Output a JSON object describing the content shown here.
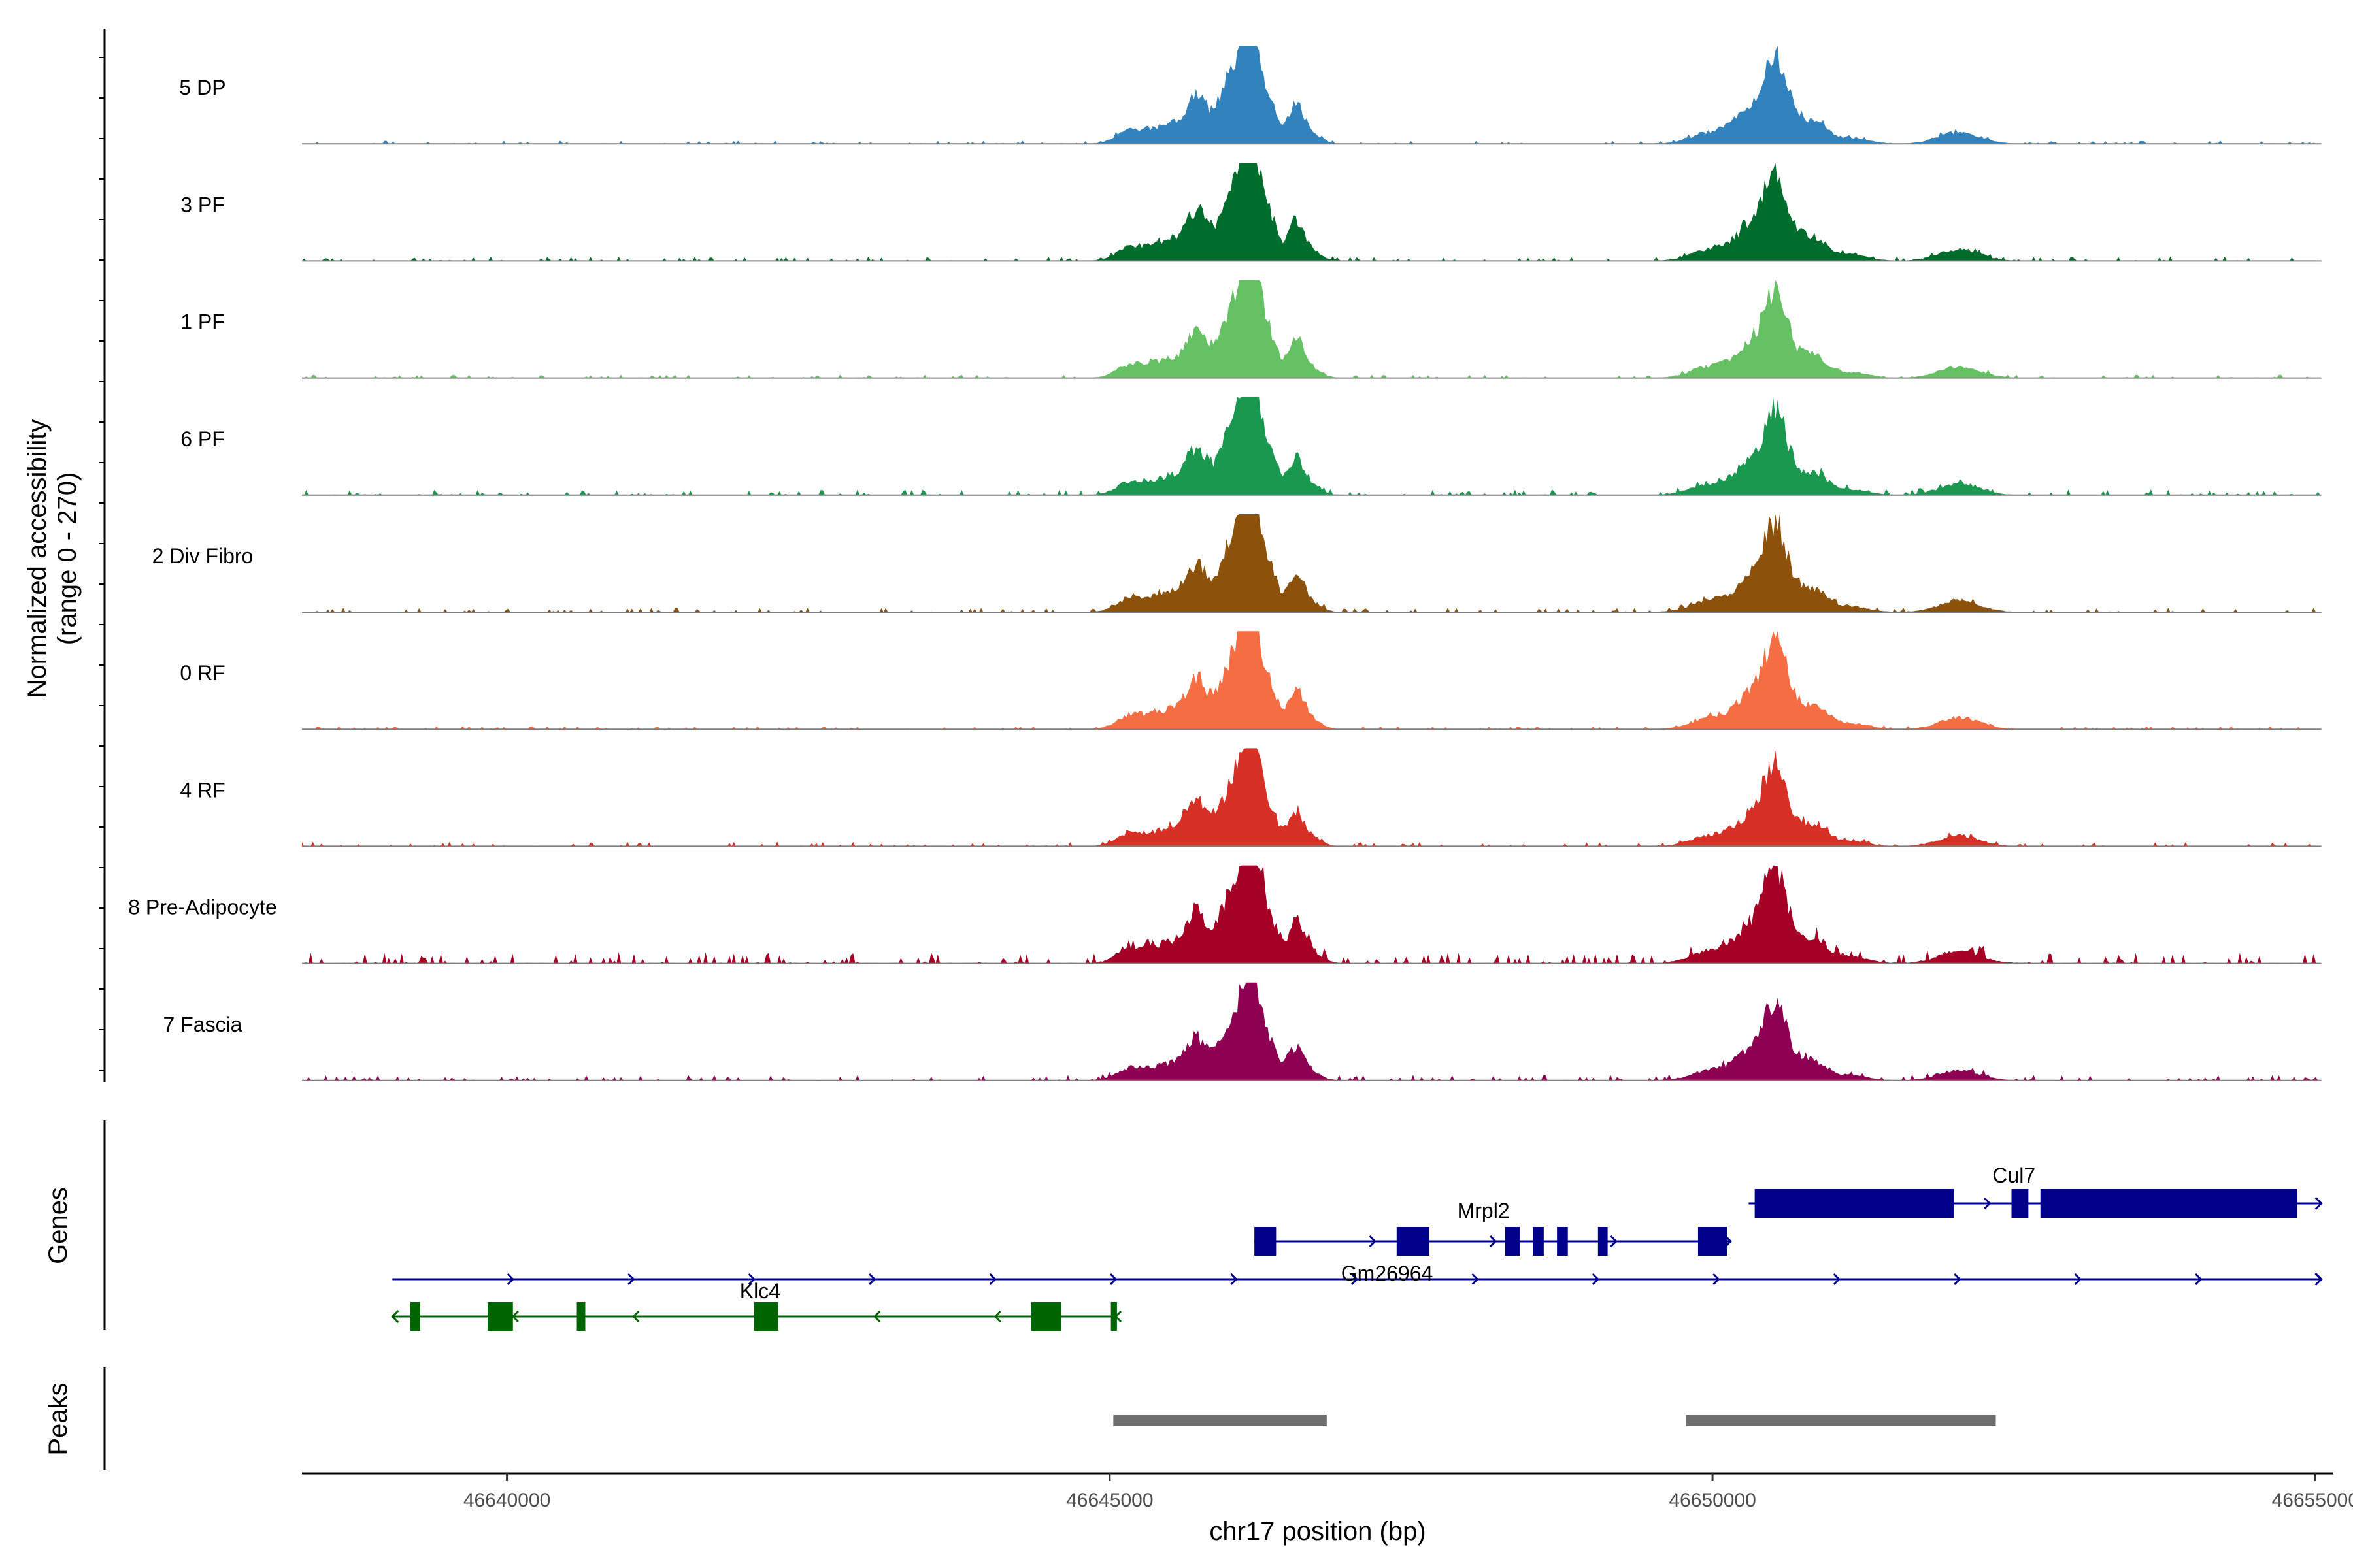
{
  "chart_data": {
    "type": "area",
    "title": "",
    "xlabel": "chr17 position (bp)",
    "ylabel_line1": "Normalized accessibility",
    "ylabel_line2": "(range 0 - 270)",
    "genes_panel_label": "Genes",
    "peaks_panel_label": "Peaks",
    "xlim": [
      46638300,
      46655150
    ],
    "ylim": [
      0,
      270
    ],
    "x_ticks": [
      46640000,
      46645000,
      46650000,
      46655000
    ],
    "x_tick_labels": [
      "46640000",
      "46645000",
      "46650000",
      "46655000"
    ],
    "track_x_range": [
      46638300,
      46655050
    ],
    "peak_shapes": [
      {
        "center": 46645180,
        "width": 120,
        "height": 0.14
      },
      {
        "center": 46645400,
        "width": 110,
        "height": 0.1
      },
      {
        "center": 46645520,
        "width": 90,
        "height": 0.12
      },
      {
        "center": 46645720,
        "width": 90,
        "height": 0.5
      },
      {
        "center": 46645950,
        "width": 80,
        "height": 0.32
      },
      {
        "center": 46646100,
        "width": 100,
        "height": 0.72
      },
      {
        "center": 46646180,
        "width": 70,
        "height": 0.85
      },
      {
        "center": 46646330,
        "width": 70,
        "height": 0.38
      },
      {
        "center": 46646540,
        "width": 60,
        "height": 0.36
      },
      {
        "center": 46646650,
        "width": 90,
        "height": 0.12
      },
      {
        "center": 46650000,
        "width": 170,
        "height": 0.12
      },
      {
        "center": 46650350,
        "width": 140,
        "height": 0.36
      },
      {
        "center": 46650530,
        "width": 90,
        "height": 0.75
      },
      {
        "center": 46650750,
        "width": 110,
        "height": 0.2
      },
      {
        "center": 46650900,
        "width": 90,
        "height": 0.12
      },
      {
        "center": 46651150,
        "width": 140,
        "height": 0.06
      },
      {
        "center": 46652050,
        "width": 170,
        "height": 0.12
      }
    ],
    "series": [
      {
        "name": "5 DP",
        "color": "#3182bd",
        "scale": 1.0,
        "noise": 0.015
      },
      {
        "name": "3 PF",
        "color": "#006d2c",
        "scale": 1.0,
        "noise": 0.02
      },
      {
        "name": "1 PF",
        "color": "#66c164",
        "scale": 0.98,
        "noise": 0.015
      },
      {
        "name": "6 PF",
        "color": "#1a9850",
        "scale": 0.95,
        "noise": 0.025
      },
      {
        "name": "2 Div Fibro",
        "color": "#8c510a",
        "scale": 0.98,
        "noise": 0.02
      },
      {
        "name": "0 RF",
        "color": "#f46d43",
        "scale": 1.0,
        "noise": 0.015
      },
      {
        "name": "4 RF",
        "color": "#d73027",
        "scale": 0.9,
        "noise": 0.02
      },
      {
        "name": "8 Pre-Adipocyte",
        "color": "#a50026",
        "scale": 1.05,
        "noise": 0.05
      },
      {
        "name": "7 Fascia",
        "color": "#8e0152",
        "scale": 0.85,
        "noise": 0.025
      }
    ],
    "genes": [
      {
        "name": "Cul7",
        "strand": "+",
        "color": "#00008b",
        "start": 46650300,
        "end": 46655050,
        "exons": [
          [
            46650350,
            46652000
          ],
          [
            46652480,
            46652620
          ],
          [
            46652720,
            46654850
          ]
        ]
      },
      {
        "name": "Mrpl2",
        "strand": "+",
        "color": "#00008b",
        "start": 46646200,
        "end": 46650150,
        "exons": [
          [
            46646200,
            46646380
          ],
          [
            46647380,
            46647650
          ],
          [
            46648280,
            46648400
          ],
          [
            46648510,
            46648600
          ],
          [
            46648710,
            46648800
          ],
          [
            46649050,
            46649130
          ],
          [
            46649880,
            46650120
          ]
        ]
      },
      {
        "name": "Gm26964",
        "strand": "+",
        "color": "#00008b",
        "start": 46639050,
        "end": 46655050,
        "exons": []
      },
      {
        "name": "Klc4",
        "strand": "-",
        "color": "#006400",
        "start": 46639050,
        "end": 46645050,
        "exons": [
          [
            46639200,
            46639280
          ],
          [
            46639840,
            46640050
          ],
          [
            46640580,
            46640650
          ],
          [
            46642050,
            46642250
          ],
          [
            46644350,
            46644600
          ],
          [
            46645010,
            46645060
          ]
        ]
      }
    ],
    "peaks": [
      [
        46645030,
        46646800
      ],
      [
        46649780,
        46652350
      ]
    ]
  }
}
